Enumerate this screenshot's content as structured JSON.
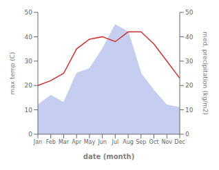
{
  "chart_data": {
    "type": "line",
    "xlabel": "date (month)",
    "ylabel": "max temp (C)",
    "y2label": "med. precipitation (kg/m2)",
    "categories": [
      "Jan",
      "Feb",
      "Mar",
      "Apr",
      "May",
      "Jun",
      "Jul",
      "Aug",
      "Sep",
      "Oct",
      "Nov",
      "Dec"
    ],
    "series": [
      {
        "type": "area",
        "axis": "y2",
        "color": "#c5cef0",
        "values": [
          12,
          16,
          13,
          25,
          27,
          35,
          45,
          42,
          25,
          18,
          12,
          11
        ]
      },
      {
        "type": "line",
        "color": "#cc3333",
        "values": [
          20,
          22,
          25,
          35,
          39,
          40,
          38,
          42,
          42,
          37,
          30,
          23
        ]
      }
    ],
    "ylim": [
      0,
      50
    ],
    "yticks": [
      0,
      10,
      20,
      30,
      40,
      50
    ],
    "y2lim": [
      0,
      50
    ],
    "y2ticks": [
      0,
      10,
      20,
      30,
      40,
      50
    ],
    "grid": false
  }
}
